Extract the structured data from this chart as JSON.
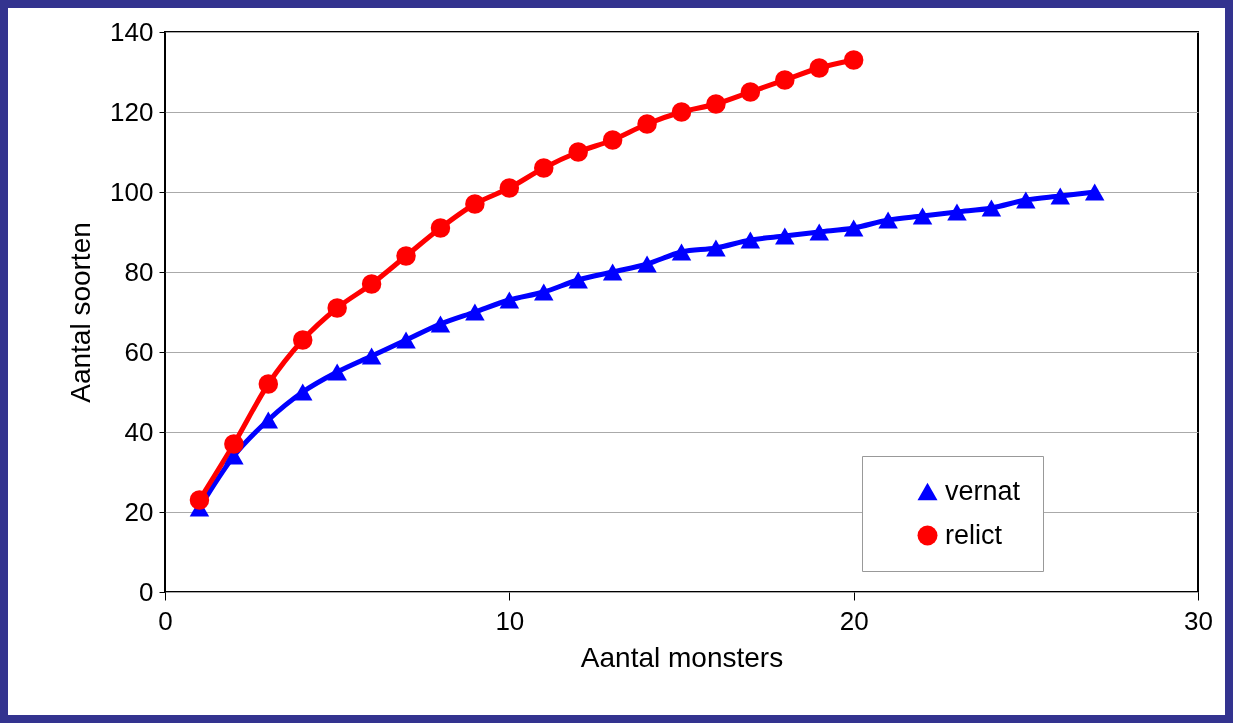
{
  "chart_data": {
    "type": "line",
    "xlabel": "Aantal monsters",
    "ylabel": "Aantal soorten",
    "xlim": [
      0,
      30
    ],
    "xticks": [
      0,
      10,
      20,
      30
    ],
    "ylim": [
      0,
      140
    ],
    "yticks": [
      0,
      20,
      40,
      60,
      80,
      100,
      120,
      140
    ],
    "grid": "y",
    "legend": "bottom right",
    "line_style": "solid",
    "series": [
      {
        "name": "vernat",
        "color": "#0000ff",
        "marker": "triangle",
        "x": [
          1,
          2,
          3,
          4,
          5,
          6,
          7,
          8,
          9,
          10,
          11,
          12,
          13,
          14,
          15,
          16,
          17,
          18,
          19,
          20,
          21,
          22,
          23,
          24,
          25,
          26,
          27
        ],
        "values": [
          21,
          34,
          43,
          50,
          55,
          59,
          63,
          67,
          70,
          73,
          75,
          78,
          80,
          82,
          85,
          86,
          88,
          89,
          90,
          91,
          93,
          94,
          95,
          96,
          98,
          99,
          100
        ]
      },
      {
        "name": "relict",
        "color": "#ff0000",
        "marker": "circle",
        "x": [
          1,
          2,
          3,
          4,
          5,
          6,
          7,
          8,
          9,
          10,
          11,
          12,
          13,
          14,
          15,
          16,
          17,
          18,
          19,
          20
        ],
        "values": [
          23,
          37,
          52,
          63,
          71,
          77,
          84,
          91,
          97,
          101,
          106,
          110,
          113,
          117,
          120,
          122,
          125,
          128,
          131,
          133
        ]
      }
    ]
  }
}
